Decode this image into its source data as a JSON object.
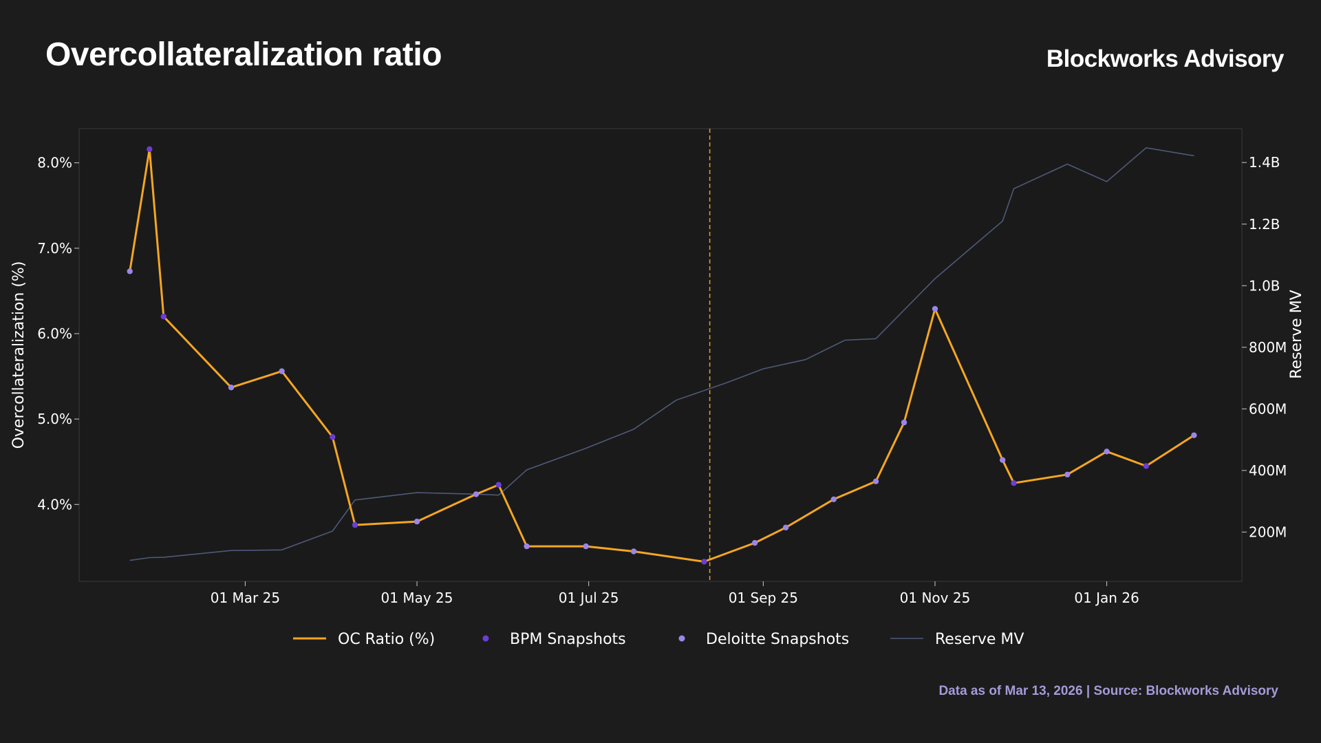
{
  "header": {
    "title": "Overcollateralization ratio",
    "brand": "Blockworks Advisory"
  },
  "footer": {
    "note": "Data as of Mar 13, 2026 | Source: Blockworks Advisory"
  },
  "colors": {
    "background": "#1c1c1c",
    "plot_background": "#1a1a1a",
    "oc_line": "#f5a623",
    "bpm_marker": "#6a3fd4",
    "deloitte_marker": "#9b86e8",
    "reserve_line": "#4e5a78",
    "divider": "#d99a2b",
    "footer_text": "#a69ad8"
  },
  "chart_data": {
    "type": "line",
    "x_axis": {
      "type": "date",
      "range": [
        "2025-01-01",
        "2026-02-18"
      ],
      "ticks": [
        {
          "date": "2025-03-01",
          "label": "01 Mar 25"
        },
        {
          "date": "2025-05-01",
          "label": "01 May 25"
        },
        {
          "date": "2025-07-01",
          "label": "01 Jul 25"
        },
        {
          "date": "2025-09-01",
          "label": "01 Sep 25"
        },
        {
          "date": "2025-11-01",
          "label": "01 Nov 25"
        },
        {
          "date": "2026-01-01",
          "label": "01 Jan 26"
        }
      ]
    },
    "y_left": {
      "label": "Overcollateralization (%)",
      "range": [
        3.1,
        8.4
      ],
      "ticks": [
        {
          "value": 4.0,
          "label": "4.0%"
        },
        {
          "value": 5.0,
          "label": "5.0%"
        },
        {
          "value": 6.0,
          "label": "6.0%"
        },
        {
          "value": 7.0,
          "label": "7.0%"
        },
        {
          "value": 8.0,
          "label": "8.0%"
        }
      ]
    },
    "y_right": {
      "label": "Reserve MV",
      "range": [
        40,
        1510
      ],
      "unit": "M",
      "ticks": [
        {
          "value": 200,
          "label": "200M"
        },
        {
          "value": 400,
          "label": "400M"
        },
        {
          "value": 600,
          "label": "600M"
        },
        {
          "value": 800,
          "label": "800M"
        },
        {
          "value": 1000,
          "label": "1.0B"
        },
        {
          "value": 1200,
          "label": "1.2B"
        },
        {
          "value": 1400,
          "label": "1.4B"
        }
      ]
    },
    "vertical_marker": {
      "date": "2025-08-13",
      "style": "dashed"
    },
    "legend": {
      "position": "bottom-center",
      "entries": [
        {
          "name": "OC Ratio (%)",
          "kind": "line",
          "color": "#f5a623"
        },
        {
          "name": "BPM Snapshots",
          "kind": "marker",
          "color": "#6a3fd4"
        },
        {
          "name": "Deloitte Snapshots",
          "kind": "marker",
          "color": "#9b86e8"
        },
        {
          "name": "Reserve MV",
          "kind": "line",
          "color": "#4e5a78"
        }
      ]
    },
    "series": [
      {
        "name": "OC Ratio (%)",
        "axis": "left",
        "points": [
          {
            "x": "2025-01-19",
            "y": 6.73,
            "snapshot": "Deloitte"
          },
          {
            "x": "2025-01-26",
            "y": 8.16,
            "snapshot": "BPM"
          },
          {
            "x": "2025-01-31",
            "y": 6.2,
            "snapshot": "BPM"
          },
          {
            "x": "2025-02-24",
            "y": 5.37,
            "snapshot": "Deloitte"
          },
          {
            "x": "2025-03-14",
            "y": 5.56,
            "snapshot": "Deloitte"
          },
          {
            "x": "2025-04-01",
            "y": 4.79,
            "snapshot": "BPM"
          },
          {
            "x": "2025-04-09",
            "y": 3.76,
            "snapshot": "BPM"
          },
          {
            "x": "2025-05-01",
            "y": 3.8,
            "snapshot": "Deloitte"
          },
          {
            "x": "2025-05-22",
            "y": 4.12,
            "snapshot": "Deloitte"
          },
          {
            "x": "2025-05-30",
            "y": 4.23,
            "snapshot": "BPM"
          },
          {
            "x": "2025-06-09",
            "y": 3.51,
            "snapshot": "Deloitte"
          },
          {
            "x": "2025-06-30",
            "y": 3.51,
            "snapshot": "Deloitte"
          },
          {
            "x": "2025-07-17",
            "y": 3.45,
            "snapshot": "Deloitte"
          },
          {
            "x": "2025-08-11",
            "y": 3.33,
            "snapshot": "BPM"
          },
          {
            "x": "2025-08-29",
            "y": 3.55,
            "snapshot": "Deloitte"
          },
          {
            "x": "2025-09-09",
            "y": 3.73,
            "snapshot": "Deloitte"
          },
          {
            "x": "2025-09-26",
            "y": 4.06,
            "snapshot": "Deloitte"
          },
          {
            "x": "2025-10-11",
            "y": 4.27,
            "snapshot": "Deloitte"
          },
          {
            "x": "2025-10-21",
            "y": 4.96,
            "snapshot": "Deloitte"
          },
          {
            "x": "2025-11-01",
            "y": 6.29,
            "snapshot": "Deloitte"
          },
          {
            "x": "2025-11-25",
            "y": 4.52,
            "snapshot": "Deloitte"
          },
          {
            "x": "2025-11-29",
            "y": 4.25,
            "snapshot": "BPM"
          },
          {
            "x": "2025-12-18",
            "y": 4.35,
            "snapshot": "Deloitte"
          },
          {
            "x": "2026-01-01",
            "y": 4.62,
            "snapshot": "Deloitte"
          },
          {
            "x": "2026-01-15",
            "y": 4.45,
            "snapshot": "BPM"
          },
          {
            "x": "2026-02-01",
            "y": 4.81,
            "snapshot": "Deloitte"
          }
        ]
      },
      {
        "name": "Reserve MV",
        "axis": "right",
        "points": [
          {
            "x": "2025-01-19",
            "y": 108
          },
          {
            "x": "2025-01-26",
            "y": 117
          },
          {
            "x": "2025-01-31",
            "y": 118
          },
          {
            "x": "2025-02-24",
            "y": 140
          },
          {
            "x": "2025-03-14",
            "y": 142
          },
          {
            "x": "2025-04-01",
            "y": 203
          },
          {
            "x": "2025-04-09",
            "y": 304
          },
          {
            "x": "2025-05-01",
            "y": 328
          },
          {
            "x": "2025-05-22",
            "y": 323
          },
          {
            "x": "2025-05-30",
            "y": 320
          },
          {
            "x": "2025-06-09",
            "y": 402
          },
          {
            "x": "2025-06-30",
            "y": 472
          },
          {
            "x": "2025-07-17",
            "y": 534
          },
          {
            "x": "2025-08-01",
            "y": 628
          },
          {
            "x": "2025-08-19",
            "y": 685
          },
          {
            "x": "2025-09-01",
            "y": 730
          },
          {
            "x": "2025-09-16",
            "y": 760
          },
          {
            "x": "2025-09-30",
            "y": 823
          },
          {
            "x": "2025-10-11",
            "y": 828
          },
          {
            "x": "2025-11-01",
            "y": 1023
          },
          {
            "x": "2025-11-25",
            "y": 1210
          },
          {
            "x": "2025-11-29",
            "y": 1315
          },
          {
            "x": "2025-12-18",
            "y": 1395
          },
          {
            "x": "2026-01-01",
            "y": 1338
          },
          {
            "x": "2026-01-15",
            "y": 1448
          },
          {
            "x": "2026-02-01",
            "y": 1422
          }
        ]
      }
    ]
  }
}
